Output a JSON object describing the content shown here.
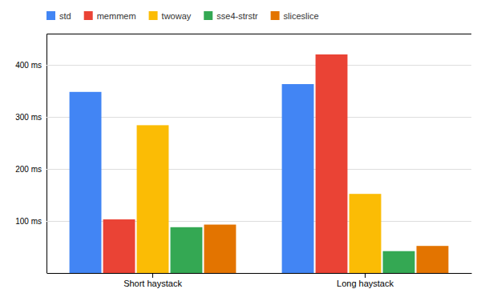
{
  "chart_data": {
    "type": "bar",
    "categories": [
      "Short haystack",
      "Long haystack"
    ],
    "series": [
      {
        "name": "std",
        "color": "#4285F4",
        "values": [
          348,
          363
        ]
      },
      {
        "name": "memmem",
        "color": "#EA4335",
        "values": [
          103,
          420
        ]
      },
      {
        "name": "twoway",
        "color": "#FBBC05",
        "values": [
          284,
          152
        ]
      },
      {
        "name": "sse4-strstr",
        "color": "#34A853",
        "values": [
          88,
          42
        ]
      },
      {
        "name": "sliceslice",
        "color": "#E37400",
        "values": [
          93,
          52
        ]
      }
    ],
    "ylim": [
      0,
      460
    ],
    "yticks": [
      {
        "value": 0,
        "label": null
      },
      {
        "value": 100,
        "label": "100 ms"
      },
      {
        "value": 200,
        "label": "200 ms"
      },
      {
        "value": 300,
        "label": "300 ms"
      },
      {
        "value": 400,
        "label": "400 ms"
      }
    ],
    "grid": true,
    "legend": "top"
  }
}
